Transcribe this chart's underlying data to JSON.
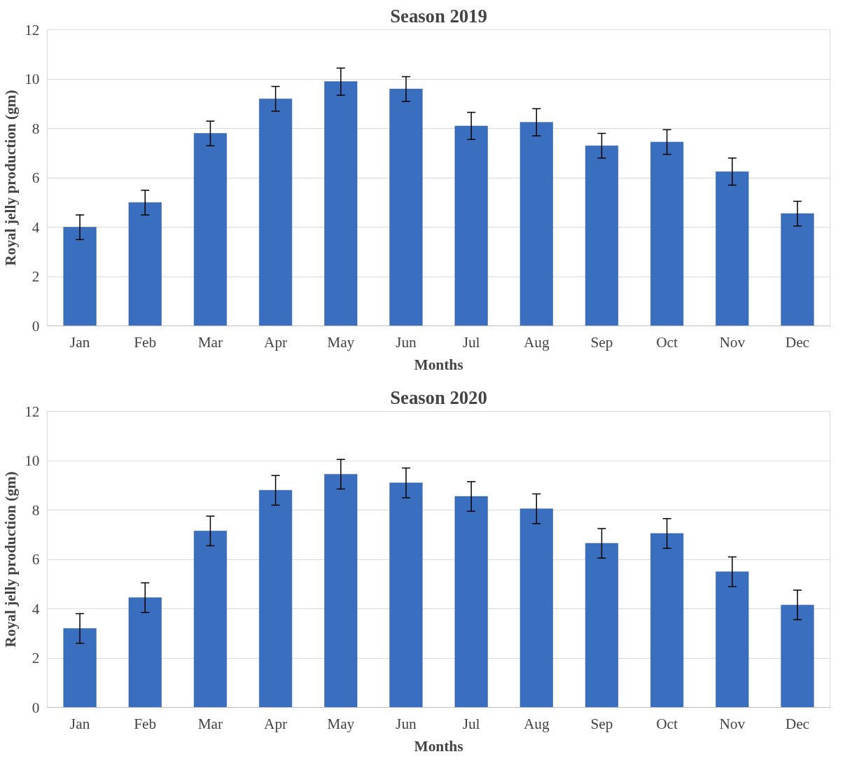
{
  "chart_data": [
    {
      "type": "bar",
      "title": "Season 2019",
      "xlabel": "Months",
      "ylabel": "Royal jelly production (gm)",
      "categories": [
        "Jan",
        "Feb",
        "Mar",
        "Apr",
        "May",
        "Jun",
        "Jul",
        "Aug",
        "Sep",
        "Oct",
        "Nov",
        "Dec"
      ],
      "values": [
        4.0,
        5.0,
        7.8,
        9.2,
        9.9,
        9.6,
        8.1,
        8.25,
        7.3,
        7.45,
        6.25,
        4.55
      ],
      "errors": [
        0.5,
        0.5,
        0.5,
        0.5,
        0.55,
        0.5,
        0.55,
        0.55,
        0.5,
        0.5,
        0.55,
        0.5
      ],
      "color": "#3a6fbf",
      "ylim": [
        0,
        12
      ],
      "yticks": [
        0,
        2,
        4,
        6,
        8,
        10,
        12
      ],
      "grid": "y",
      "legend": false
    },
    {
      "type": "bar",
      "title": "Season 2020",
      "xlabel": "Months",
      "ylabel": "Royal jelly production (gm)",
      "categories": [
        "Jan",
        "Feb",
        "Mar",
        "Apr",
        "May",
        "Jun",
        "Jul",
        "Aug",
        "Sep",
        "Oct",
        "Nov",
        "Dec"
      ],
      "values": [
        3.2,
        4.45,
        7.15,
        8.8,
        9.45,
        9.1,
        8.55,
        8.05,
        6.65,
        7.05,
        5.5,
        4.15
      ],
      "errors": [
        0.6,
        0.6,
        0.6,
        0.6,
        0.6,
        0.6,
        0.6,
        0.6,
        0.6,
        0.6,
        0.6,
        0.6
      ],
      "color": "#3a6fbf",
      "ylim": [
        0,
        12
      ],
      "yticks": [
        0,
        2,
        4,
        6,
        8,
        10,
        12
      ],
      "grid": "y",
      "legend": false
    }
  ]
}
